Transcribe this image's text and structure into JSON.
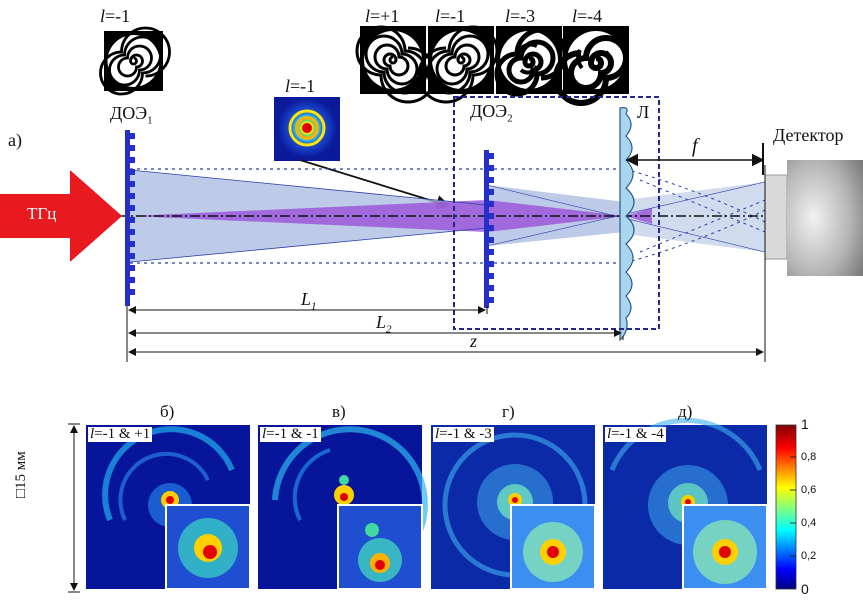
{
  "panel_a": {
    "label": "а)",
    "source_label": "ТГц",
    "doe1_label": "ДОЭ",
    "doe1_sub": "1",
    "doe2_label": "ДОЭ",
    "doe2_sub": "2",
    "lens_label": "Л",
    "detector_label": "Детектор",
    "f_label": "f",
    "L1_label": "L",
    "L1_sub": "1",
    "L2_label": "L",
    "L2_sub": "2",
    "z_label": "z",
    "doe1_charge": "=-1",
    "inset_charge": "=-1",
    "set_charges": [
      "=+1",
      "=-1",
      "=-3",
      "=-4"
    ],
    "l_symbol": "l"
  },
  "panels": [
    {
      "title": "б)",
      "tag": "=-1 & +1"
    },
    {
      "title": "в)",
      "tag": "=-1 & -1"
    },
    {
      "title": "г)",
      "tag": "=-1 & -3"
    },
    {
      "title": "д)",
      "tag": "=-1 & -4"
    }
  ],
  "scale_label": "□15 мм",
  "colorbar": {
    "ticks": [
      "1",
      "0,8",
      "0,6",
      "0,4",
      "0,2",
      "0"
    ]
  }
}
